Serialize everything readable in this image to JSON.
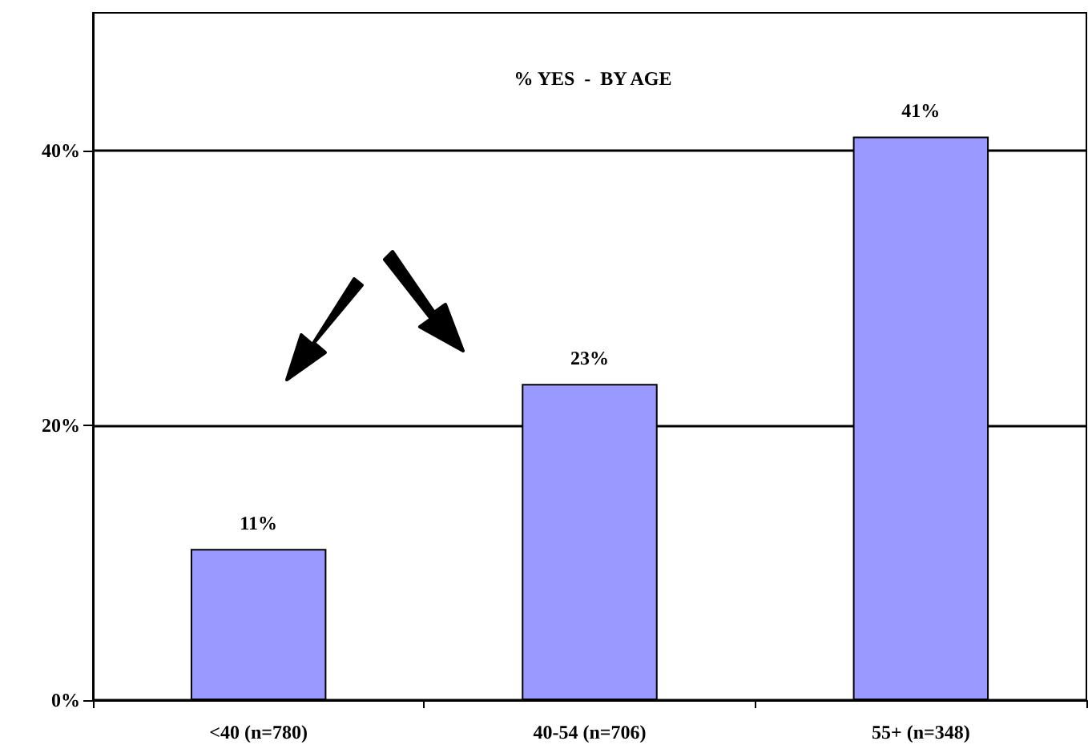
{
  "chart_data": {
    "type": "bar",
    "title": "% YES  -  BY AGE",
    "categories": [
      "<40 (n=780)",
      "40-54 (n=706)",
      "55+ (n=348)"
    ],
    "values": [
      11,
      23,
      41
    ],
    "color": "#9999ff",
    "value_labels": [
      "11%",
      "23%",
      "41%"
    ],
    "ylim": [
      0,
      50
    ],
    "yticks": [
      {
        "value": 0,
        "label": "0%"
      },
      {
        "value": 20,
        "label": "20%"
      },
      {
        "value": 40,
        "label": "40%"
      }
    ],
    "grid": "y"
  }
}
